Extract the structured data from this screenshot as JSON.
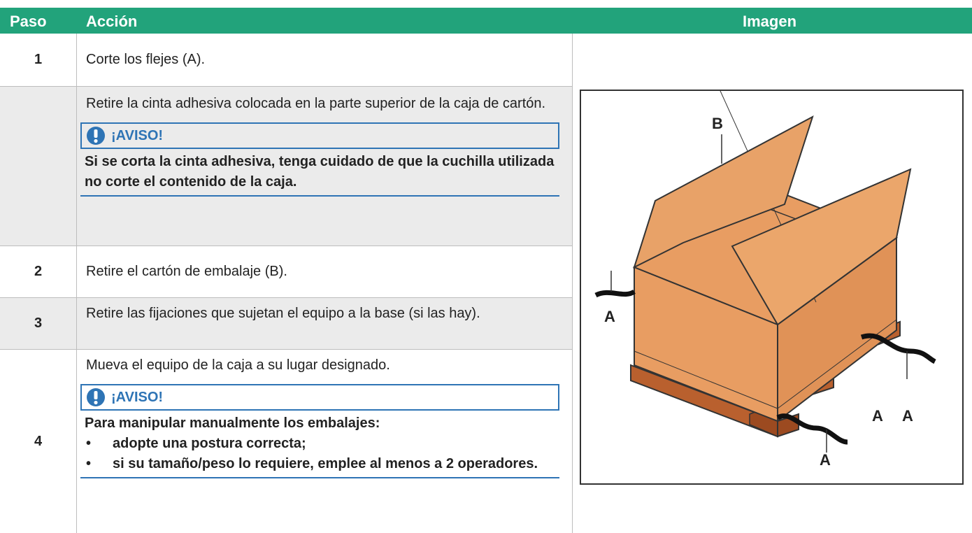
{
  "table": {
    "headers": [
      "Paso",
      "Acción",
      "Imagen"
    ],
    "rows": [
      {
        "step": "1",
        "action": "Corte los flejes (A)."
      },
      {
        "action": "Retire la cinta adhesiva colocada en la parte superior de la caja de cartón.",
        "notice": {
          "title": "¡AVISO!",
          "text": "Si se corta la cinta adhesiva, tenga cuidado de que la cuchilla utilizada no corte el contenido de la caja."
        }
      },
      {
        "step": "2",
        "action": "Retire el cartón de embalaje (B)."
      },
      {
        "step": "3",
        "action": "Retire las fijaciones que sujetan el equipo a la base (si las hay)."
      },
      {
        "step": "4",
        "action": "Mueva el equipo de la caja a su lugar designado.",
        "notice": {
          "title": "¡AVISO!",
          "text": "Para manipular manualmente los embalajes:",
          "items": [
            "adopte una postura correcta;",
            "si su tamaño/peso lo requiere, emplee al menos a 2 operadores."
          ]
        }
      }
    ]
  },
  "figure": {
    "labels": [
      "B",
      "A",
      "A",
      "A",
      "A"
    ]
  }
}
